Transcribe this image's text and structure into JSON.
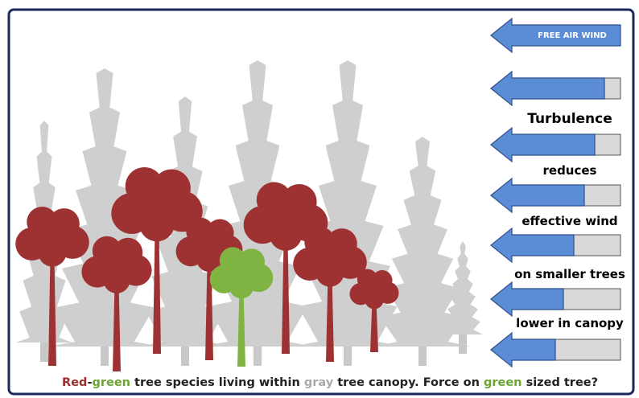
{
  "wind_arrow": {
    "label": "FREE AIR WIND"
  },
  "labels": [
    "Turbulence",
    "reduces",
    "effective wind",
    "on smaller trees",
    "lower in canopy"
  ],
  "caption": {
    "segments": [
      "Red",
      "-",
      "green",
      " tree species living within ",
      "gray",
      " tree canopy. Force on ",
      "green",
      " sized tree?"
    ]
  }
}
